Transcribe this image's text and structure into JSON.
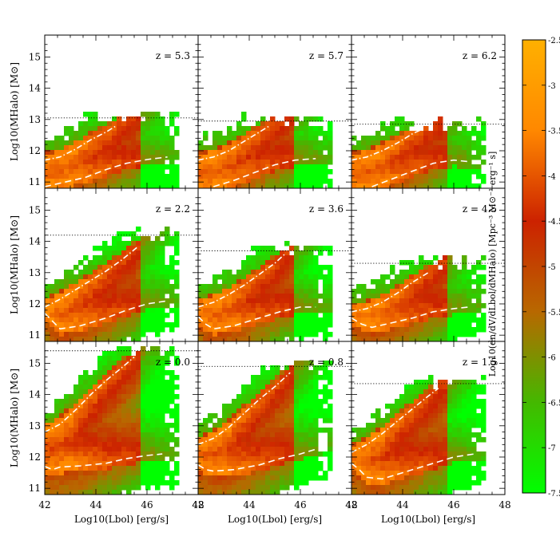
{
  "chart_data": {
    "type": "heatmap",
    "layout": "3x3 grid of panels with shared axes and a shared colorbar on the right",
    "xlabel": "Log10(Lbol) [erg/s]",
    "ylabel": "Log10(MHalo) [M⊙]",
    "colorbar_label": "Log10(dn/dV/dLbol/dMHalo) [Mpc⁻³ M⊙⁻¹ erg⁻¹ s]",
    "xlim": [
      42,
      48
    ],
    "ylim": [
      10.8,
      15.7
    ],
    "x_ticks": [
      42,
      44,
      46,
      48
    ],
    "y_ticks": [
      11,
      12,
      13,
      14,
      15
    ],
    "colorbar": {
      "range": [
        -7.5,
        -2.5
      ],
      "ticks": [
        "-2.5",
        "-3",
        "-3.5",
        "-4",
        "-4.5",
        "-5",
        "-5.5",
        "-6",
        "-6.5",
        "-7",
        "-7.5"
      ],
      "colors": [
        "#00ff00",
        "#44b800",
        "#b86800",
        "#cc2200",
        "#ff8800",
        "#ffb000"
      ]
    },
    "line_styles": {
      "dash_dot": "white dash-dot",
      "dashed": "white dashed",
      "dotted": "black dotted"
    },
    "panels": [
      {
        "label": "z = 5.3",
        "dotted_y": 13.05,
        "dashdot": [
          [
            42,
            11.7
          ],
          [
            42.6,
            11.8
          ],
          [
            43.2,
            12.05
          ],
          [
            43.8,
            12.35
          ],
          [
            44.4,
            12.6
          ],
          [
            44.8,
            12.8
          ]
        ],
        "dashed": [
          [
            42,
            10.85
          ],
          [
            42.8,
            11.0
          ],
          [
            43.6,
            11.15
          ],
          [
            44.4,
            11.4
          ],
          [
            45.2,
            11.6
          ],
          [
            46.0,
            11.72
          ],
          [
            46.8,
            11.8
          ]
        ]
      },
      {
        "label": "z = 5.7",
        "dotted_y": 12.95,
        "dashdot": [
          [
            42,
            11.7
          ],
          [
            42.6,
            11.8
          ],
          [
            43.2,
            12.0
          ],
          [
            43.8,
            12.3
          ],
          [
            44.4,
            12.6
          ],
          [
            44.8,
            12.8
          ]
        ],
        "dashed": [
          [
            42.6,
            10.85
          ],
          [
            43.4,
            11.05
          ],
          [
            44.2,
            11.3
          ],
          [
            45.0,
            11.55
          ],
          [
            45.8,
            11.7
          ],
          [
            46.6,
            11.75
          ]
        ]
      },
      {
        "label": "z = 6.2",
        "dotted_y": 12.85,
        "dashdot": [
          [
            42,
            11.7
          ],
          [
            42.6,
            11.8
          ],
          [
            43.2,
            12.0
          ],
          [
            43.8,
            12.25
          ],
          [
            44.4,
            12.55
          ],
          [
            44.8,
            12.7
          ]
        ],
        "dashed": [
          [
            42.8,
            10.85
          ],
          [
            43.6,
            11.1
          ],
          [
            44.4,
            11.35
          ],
          [
            45.2,
            11.6
          ],
          [
            46.0,
            11.7
          ],
          [
            46.6,
            11.65
          ]
        ]
      },
      {
        "label": "z = 2.2",
        "dotted_y": 14.2,
        "dashdot": [
          [
            42,
            11.9
          ],
          [
            42.6,
            12.15
          ],
          [
            43.2,
            12.45
          ],
          [
            43.8,
            12.75
          ],
          [
            44.4,
            13.05
          ],
          [
            45.0,
            13.4
          ],
          [
            45.6,
            13.8
          ]
        ],
        "dashed": [
          [
            42,
            11.7
          ],
          [
            42.3,
            11.45
          ],
          [
            42.6,
            11.2
          ],
          [
            43.4,
            11.3
          ],
          [
            44.4,
            11.55
          ],
          [
            45.2,
            11.8
          ],
          [
            46.0,
            12.0
          ],
          [
            46.8,
            12.1
          ]
        ]
      },
      {
        "label": "z = 3.6",
        "dotted_y": 13.7,
        "dashdot": [
          [
            42,
            11.9
          ],
          [
            42.6,
            12.05
          ],
          [
            43.2,
            12.3
          ],
          [
            43.8,
            12.6
          ],
          [
            44.4,
            12.95
          ],
          [
            45.0,
            13.3
          ],
          [
            45.4,
            13.6
          ]
        ],
        "dashed": [
          [
            42,
            11.6
          ],
          [
            42.3,
            11.35
          ],
          [
            42.6,
            11.2
          ],
          [
            43.4,
            11.3
          ],
          [
            44.4,
            11.55
          ],
          [
            45.2,
            11.75
          ],
          [
            46.0,
            11.9
          ],
          [
            46.6,
            11.9
          ]
        ]
      },
      {
        "label": "z = 4.5",
        "dotted_y": 13.3,
        "dashdot": [
          [
            42,
            11.75
          ],
          [
            42.6,
            11.85
          ],
          [
            43.2,
            12.05
          ],
          [
            43.8,
            12.35
          ],
          [
            44.4,
            12.7
          ],
          [
            45.0,
            13.0
          ]
        ],
        "dashed": [
          [
            42,
            11.55
          ],
          [
            42.4,
            11.35
          ],
          [
            42.8,
            11.25
          ],
          [
            43.6,
            11.4
          ],
          [
            44.4,
            11.55
          ],
          [
            45.2,
            11.75
          ],
          [
            46.0,
            11.85
          ],
          [
            46.6,
            11.9
          ]
        ]
      },
      {
        "label": "z = 0.0",
        "dotted_y": 15.4,
        "dashdot": [
          [
            42,
            12.8
          ],
          [
            42.6,
            13.05
          ],
          [
            43.2,
            13.5
          ],
          [
            43.8,
            14.0
          ],
          [
            44.4,
            14.45
          ],
          [
            45.0,
            14.85
          ],
          [
            45.5,
            15.2
          ]
        ],
        "dashed": [
          [
            42,
            11.7
          ],
          [
            42.3,
            11.6
          ],
          [
            42.6,
            11.68
          ],
          [
            43.4,
            11.72
          ],
          [
            44.4,
            11.8
          ],
          [
            45.2,
            11.95
          ],
          [
            46.0,
            12.05
          ],
          [
            46.6,
            12.1
          ]
        ]
      },
      {
        "label": "z = 0.8",
        "dotted_y": 14.9,
        "dashdot": [
          [
            42,
            12.4
          ],
          [
            42.6,
            12.6
          ],
          [
            43.2,
            12.95
          ],
          [
            43.8,
            13.4
          ],
          [
            44.4,
            13.85
          ],
          [
            45.0,
            14.25
          ],
          [
            45.6,
            14.7
          ]
        ],
        "dashed": [
          [
            42,
            11.75
          ],
          [
            42.3,
            11.6
          ],
          [
            42.6,
            11.55
          ],
          [
            43.4,
            11.6
          ],
          [
            44.4,
            11.75
          ],
          [
            45.2,
            11.95
          ],
          [
            46.0,
            12.1
          ],
          [
            46.8,
            12.3
          ]
        ]
      },
      {
        "label": "z = 1.5",
        "dotted_y": 14.35,
        "dashdot": [
          [
            42,
            12.15
          ],
          [
            42.6,
            12.4
          ],
          [
            43.2,
            12.75
          ],
          [
            43.8,
            13.15
          ],
          [
            44.4,
            13.55
          ],
          [
            45.0,
            13.95
          ],
          [
            45.4,
            14.2
          ]
        ],
        "dashed": [
          [
            42,
            11.8
          ],
          [
            42.3,
            11.6
          ],
          [
            42.6,
            11.35
          ],
          [
            43.2,
            11.3
          ],
          [
            44.0,
            11.5
          ],
          [
            45.0,
            11.75
          ],
          [
            46.0,
            12.0
          ],
          [
            46.8,
            12.1
          ]
        ]
      }
    ]
  }
}
